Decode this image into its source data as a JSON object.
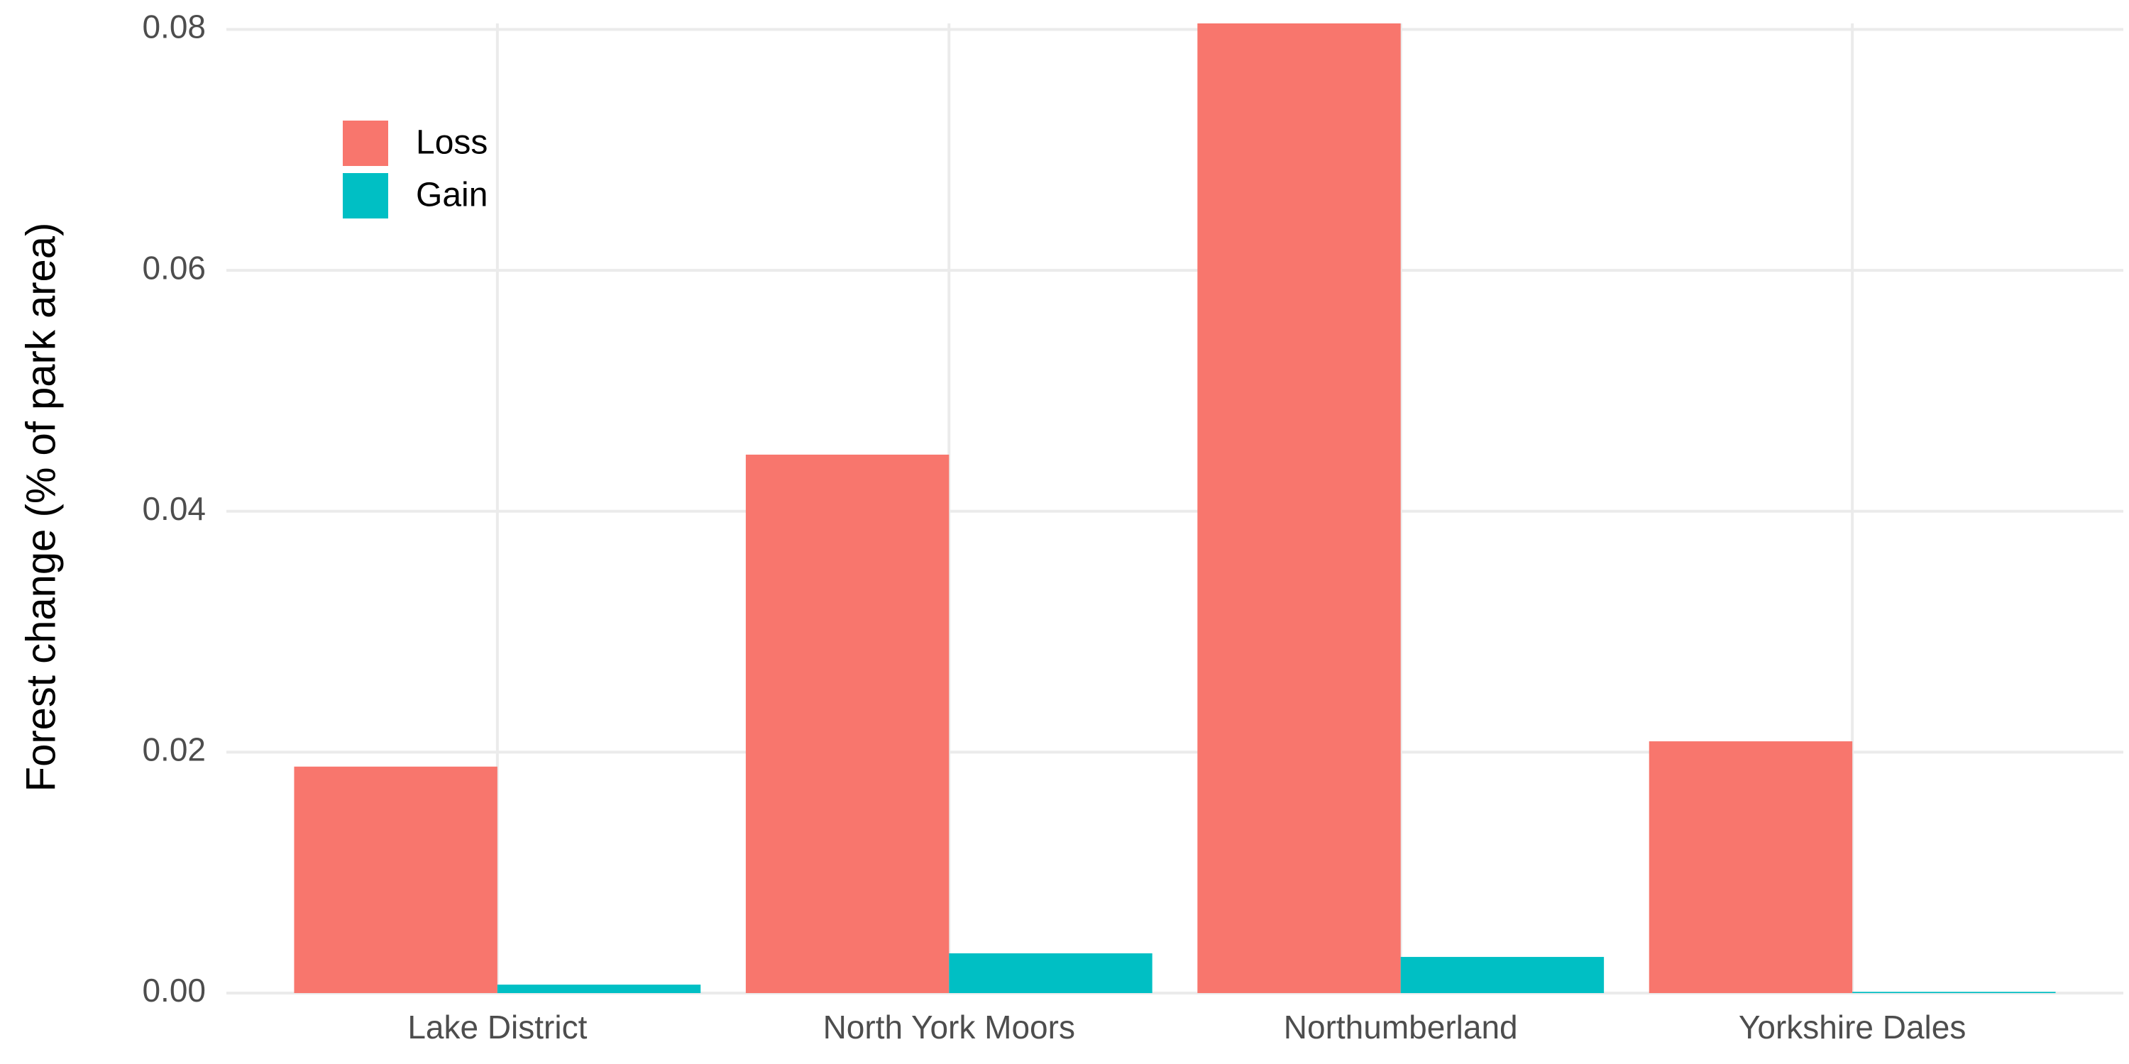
{
  "chart_data": {
    "type": "bar",
    "y_label": "Forest change (% of park area)",
    "categories": [
      "Lake District",
      "North York Moors",
      "Northumberland",
      "Yorkshire Dales"
    ],
    "series": [
      {
        "name": "Loss",
        "color": "#F8766D",
        "values": [
          0.0188,
          0.0447,
          0.0805,
          0.0209
        ]
      },
      {
        "name": "Gain",
        "color": "#00BFC4",
        "values": [
          0.0007,
          0.0033,
          0.003,
          0.0001
        ]
      }
    ],
    "ylim": [
      0,
      0.0805
    ],
    "yticks": [
      {
        "value": 0,
        "label": "0.00"
      },
      0.02,
      0.04,
      0.06,
      0.08
    ],
    "grid": true,
    "legend_position": "top-left"
  }
}
